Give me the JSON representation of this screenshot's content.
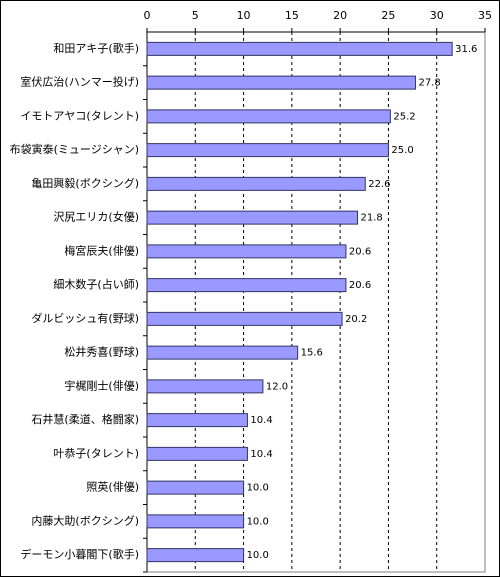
{
  "chart_data": {
    "type": "bar",
    "orientation": "horizontal",
    "categories": [
      "和田アキ子(歌手)",
      "室伏広治(ハンマー投げ)",
      "イモトアヤコ(タレント)",
      "布袋寅泰(ミュージシャン)",
      "亀田興毅(ボクシング)",
      "沢尻エリカ(女優)",
      "梅宮辰夫(俳優)",
      "細木数子(占い師)",
      "ダルビッシュ有(野球)",
      "松井秀喜(野球)",
      "宇梶剛士(俳優)",
      "石井慧(柔道、格闘家)",
      "叶恭子(タレント)",
      "照英(俳優)",
      "内藤大助(ボクシング)",
      "デーモン小暮閣下(歌手)"
    ],
    "values": [
      31.6,
      27.8,
      25.2,
      25.0,
      22.6,
      21.8,
      20.6,
      20.6,
      20.2,
      15.6,
      12.0,
      10.4,
      10.4,
      10.0,
      10.0,
      10.0
    ],
    "value_labels": [
      "31.6",
      "27.8",
      "25.2",
      "25.0",
      "22.6",
      "21.8",
      "20.6",
      "20.6",
      "20.2",
      "15.6",
      "12.0",
      "10.4",
      "10.4",
      "10.0",
      "10.0",
      "10.0"
    ],
    "color": "#9999ff",
    "xlim": [
      0,
      35
    ],
    "xticks": [
      0,
      5,
      10,
      15,
      20,
      25,
      30,
      35
    ],
    "grid": true
  }
}
